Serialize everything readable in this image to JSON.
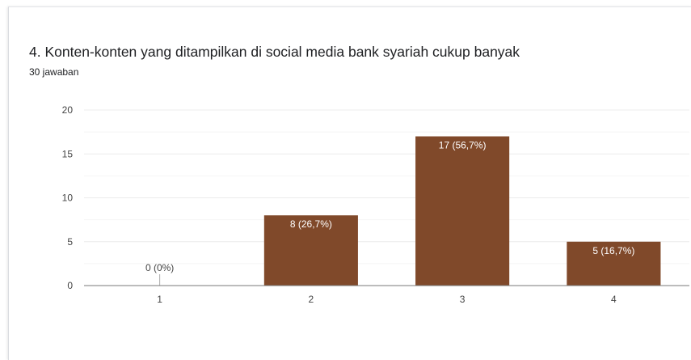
{
  "question": {
    "title": "4. Konten-konten yang ditampilkan di social media bank syariah cukup banyak",
    "responses": "30 jawaban"
  },
  "colors": {
    "bar": "#80492a",
    "grid": "#ececec",
    "axis": "#7a7a7a",
    "label_inside": "#ffffff",
    "label_outside": "#444444"
  },
  "chart_data": {
    "type": "bar",
    "categories": [
      "1",
      "2",
      "3",
      "4"
    ],
    "values": [
      0,
      8,
      17,
      5
    ],
    "data_labels": [
      "0 (0%)",
      "8 (26,7%)",
      "17 (56,7%)",
      "5 (16,7%)"
    ],
    "ylim": [
      0,
      20
    ],
    "yticks": [
      0,
      5,
      10,
      15,
      20
    ],
    "grid": true,
    "title": "4. Konten-konten yang ditampilkan di social media bank syariah cukup banyak",
    "subtitle": "30 jawaban",
    "xlabel": "",
    "ylabel": ""
  }
}
